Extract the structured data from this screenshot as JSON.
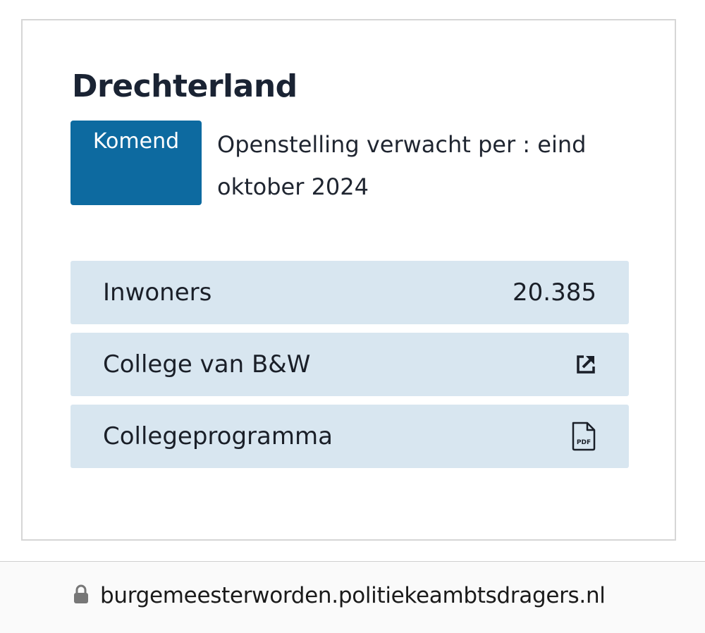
{
  "card": {
    "title": "Drechterland",
    "status": {
      "badge": "Komend",
      "badge_color": "#0d6aa0",
      "text": "Openstelling verwacht per : eind oktober 2024"
    },
    "rows": [
      {
        "label": "Inwoners",
        "value": "20.385"
      },
      {
        "label": "College van B&W",
        "icon": "external-link-icon"
      },
      {
        "label": "Collegeprogramma",
        "icon": "pdf-file-icon",
        "icon_text": "PDF"
      }
    ],
    "row_background": "#d8e6f0"
  },
  "address_bar": {
    "icon": "lock-icon",
    "url": "burgemeesterworden.politiekeambtsdragers.nl"
  }
}
